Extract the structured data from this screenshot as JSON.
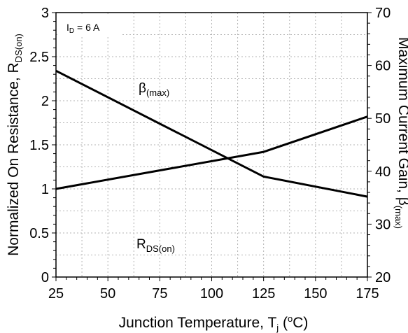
{
  "chart_data": {
    "type": "line",
    "xaxis": {
      "title_main": "Junction Temperature, T",
      "title_sub": "j",
      "title_tail": " (",
      "title_sup": "o",
      "title_end": "C)",
      "range": [
        25,
        175
      ],
      "ticks": [
        25,
        50,
        75,
        100,
        125,
        150,
        175
      ]
    },
    "yaxis_left": {
      "title_main": "Normalized On Resistance, R",
      "title_sub": "DS(on)",
      "range": [
        0,
        3
      ],
      "ticks": [
        "0",
        "0.5",
        "1",
        "1.5",
        "2",
        "2.5",
        "3"
      ]
    },
    "yaxis_right": {
      "title_main": "Maximum Current Gain, β",
      "title_sub": "(max)",
      "range": [
        20,
        70
      ],
      "ticks": [
        "20",
        "30",
        "40",
        "50",
        "60",
        "70"
      ]
    },
    "grid": true,
    "condition": {
      "main": "I",
      "sub": "D",
      "tail": " = 6 A"
    },
    "series": [
      {
        "name": "R",
        "name_sub": "DS(on)",
        "axis": "left",
        "x": [
          25,
          125,
          175
        ],
        "y": [
          1.0,
          1.42,
          1.82
        ]
      },
      {
        "name": "β",
        "name_sub": "(max)",
        "axis": "right",
        "x": [
          25,
          125,
          175
        ],
        "y": [
          59,
          39,
          35.2
        ]
      }
    ]
  }
}
